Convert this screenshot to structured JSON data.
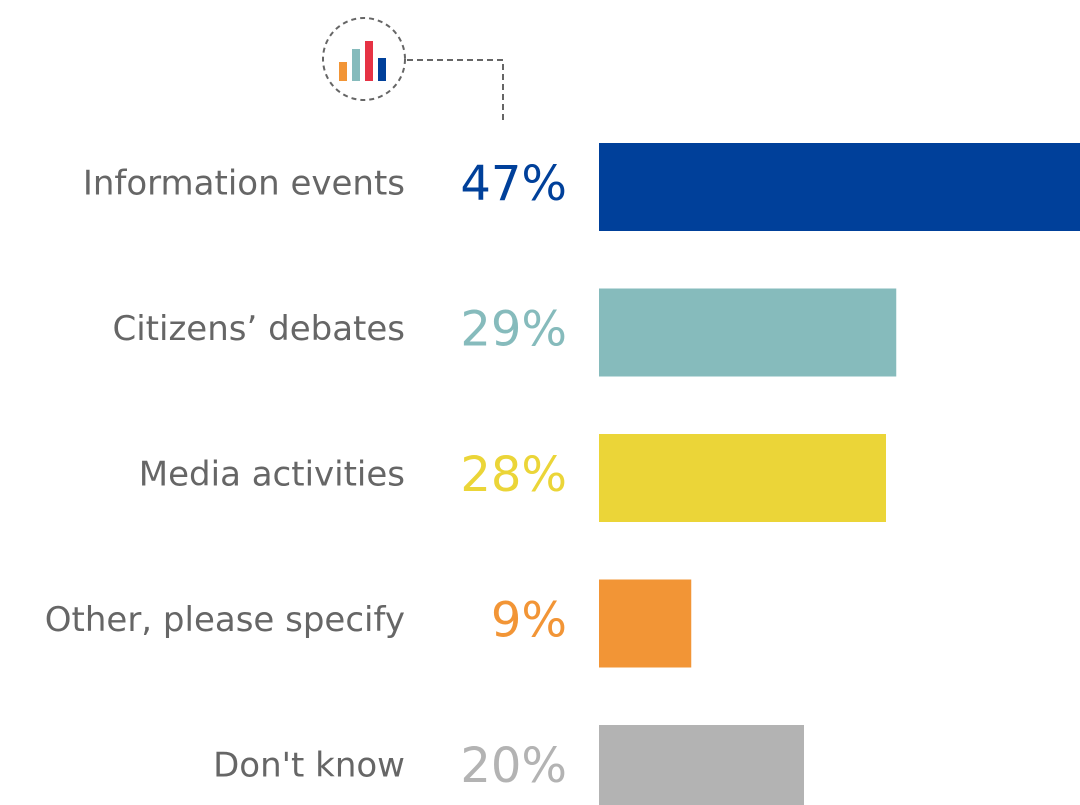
{
  "chart_data": {
    "type": "bar",
    "orientation": "horizontal",
    "categories": [
      "Information events",
      "Citizens’ debates",
      "Media activities",
      "Other, please specify",
      "Don't know"
    ],
    "values": [
      47,
      29,
      28,
      9,
      20
    ],
    "value_labels": [
      "47%",
      "29%",
      "28%",
      "9%",
      "20%"
    ],
    "colors": [
      "#00409a",
      "#86bbbc",
      "#ebd538",
      "#f29536",
      "#b3b3b3"
    ]
  }
}
